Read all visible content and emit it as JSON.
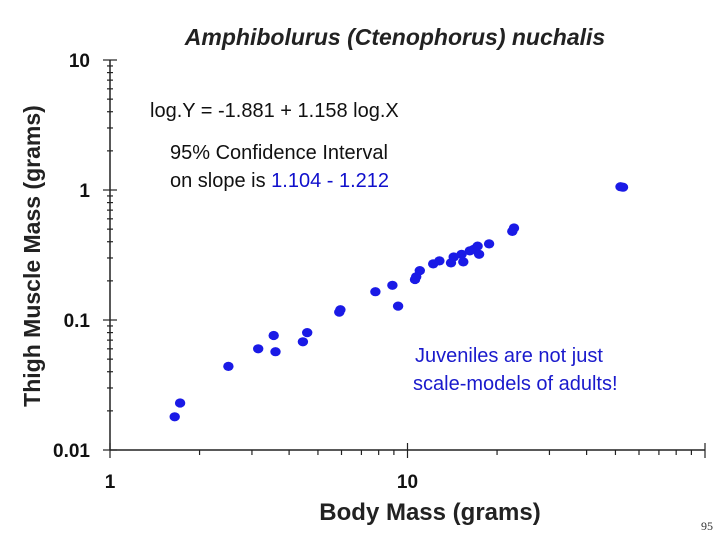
{
  "chart_data": {
    "type": "scatter",
    "title": "Amphibolurus (Ctenophorus) nuchalis",
    "xlabel": "Body Mass (grams)",
    "ylabel": "Thigh Muscle Mass (grams)",
    "x_scale": "log",
    "y_scale": "log",
    "xlim": [
      1,
      100
    ],
    "ylim": [
      0.01,
      10
    ],
    "x_tick_labels": [
      "1",
      "10"
    ],
    "y_tick_labels": [
      "10",
      "1",
      "0.1",
      "0.01"
    ],
    "grid": false,
    "point_color": "#1a1ae6",
    "points": [
      {
        "x": 1.65,
        "y": 0.018
      },
      {
        "x": 1.72,
        "y": 0.023
      },
      {
        "x": 2.5,
        "y": 0.044
      },
      {
        "x": 3.15,
        "y": 0.06
      },
      {
        "x": 3.55,
        "y": 0.076
      },
      {
        "x": 3.6,
        "y": 0.057
      },
      {
        "x": 4.45,
        "y": 0.068
      },
      {
        "x": 4.6,
        "y": 0.08
      },
      {
        "x": 5.9,
        "y": 0.115
      },
      {
        "x": 5.95,
        "y": 0.12
      },
      {
        "x": 7.8,
        "y": 0.165
      },
      {
        "x": 8.9,
        "y": 0.185
      },
      {
        "x": 9.3,
        "y": 0.128
      },
      {
        "x": 10.6,
        "y": 0.205
      },
      {
        "x": 10.7,
        "y": 0.215
      },
      {
        "x": 11.0,
        "y": 0.24
      },
      {
        "x": 12.2,
        "y": 0.27
      },
      {
        "x": 12.8,
        "y": 0.285
      },
      {
        "x": 14.0,
        "y": 0.275
      },
      {
        "x": 14.3,
        "y": 0.305
      },
      {
        "x": 15.2,
        "y": 0.32
      },
      {
        "x": 15.4,
        "y": 0.28
      },
      {
        "x": 16.2,
        "y": 0.34
      },
      {
        "x": 16.7,
        "y": 0.35
      },
      {
        "x": 17.2,
        "y": 0.37
      },
      {
        "x": 17.4,
        "y": 0.32
      },
      {
        "x": 18.8,
        "y": 0.385
      },
      {
        "x": 22.5,
        "y": 0.48
      },
      {
        "x": 22.8,
        "y": 0.51
      },
      {
        "x": 52.0,
        "y": 1.06
      },
      {
        "x": 53.0,
        "y": 1.05
      }
    ],
    "annotations": {
      "equation": "log.Y = -1.881 + 1.158 log.X",
      "ci_line1": "95% Confidence Interval",
      "ci_line2_prefix": "on slope is ",
      "ci_line2_range": "1.104 - 1.212",
      "note_line1": "Juveniles are not just",
      "note_line2": "scale-models of adults!"
    }
  },
  "slide_number": "95"
}
